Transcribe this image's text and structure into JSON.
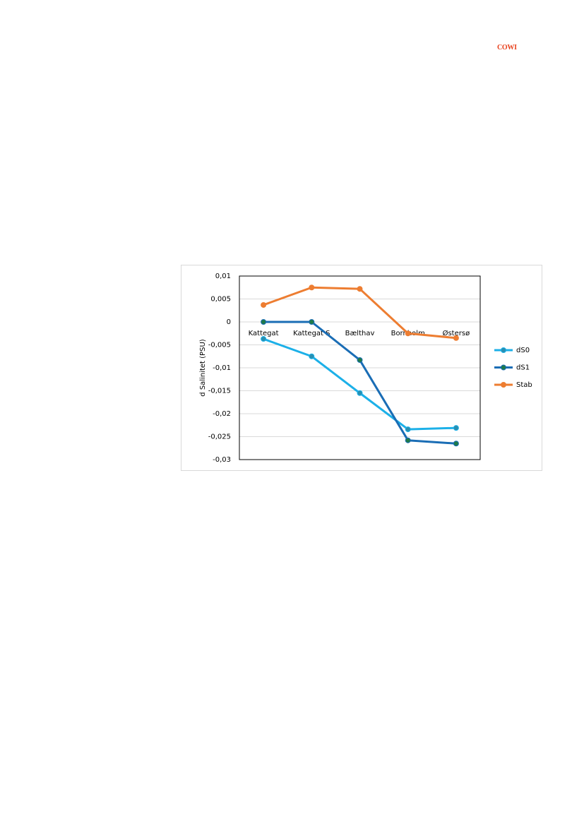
{
  "header": {
    "logo": "COWI"
  },
  "chart_data": {
    "type": "line",
    "y_label": "d Salinitet (PSU)",
    "categories": [
      "Kattegat",
      "Kattegat S",
      "Bælthav",
      "Bornholm",
      "Østersø"
    ],
    "series": [
      {
        "name": "dS0",
        "color": "#1cb0e8",
        "marker_color": "#2a8fb0",
        "values": [
          -0.0037,
          -0.0075,
          -0.0155,
          -0.0234,
          -0.0231
        ]
      },
      {
        "name": "dS1",
        "color": "#1a6db5",
        "marker_color": "#1e7a4a",
        "values": [
          0,
          0,
          -0.0083,
          -0.0258,
          -0.0265
        ]
      },
      {
        "name": "Stab",
        "color": "#ed7d31",
        "marker_color": "#ed7d31",
        "values": [
          0.0037,
          0.0075,
          0.0072,
          -0.0025,
          -0.0035
        ]
      }
    ],
    "ylim": [
      -0.03,
      0.01
    ],
    "yticks": [
      {
        "value": -0.03,
        "label": "-0,03"
      },
      {
        "value": -0.025,
        "label": "-0,025"
      },
      {
        "value": -0.02,
        "label": "-0,02"
      },
      {
        "value": -0.015,
        "label": "-0,015"
      },
      {
        "value": -0.01,
        "label": "-0,01"
      },
      {
        "value": -0.005,
        "label": "-0,005"
      },
      0,
      {
        "value": 0.005,
        "label": "0,005"
      },
      {
        "value": 0.01,
        "label": "0,01"
      }
    ],
    "grid": true,
    "legend": "right"
  }
}
